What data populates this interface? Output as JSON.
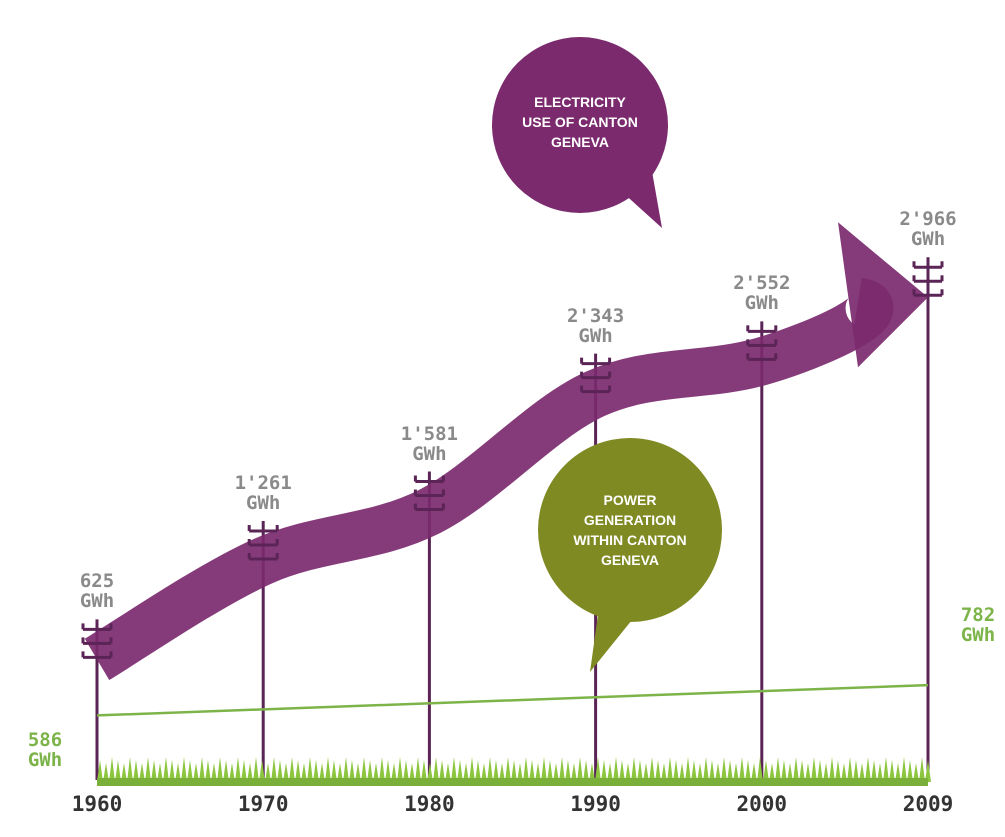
{
  "chart_data": {
    "type": "arrow-line",
    "categories": [
      "1960",
      "1970",
      "1980",
      "1990",
      "2000",
      "2009"
    ],
    "ylim": [
      -90,
      4500
    ],
    "series": [
      {
        "name": "ELECTRICITY USE OF CANTON GENEVA",
        "color": "#7b2a6e",
        "values": [
          625,
          1261,
          1581,
          2343,
          2552,
          2966
        ],
        "value_labels": [
          "625\nGWh",
          "1'261\nGWh",
          "1'581\nGWh",
          "2'343\nGWh",
          "2'552\nGWh",
          "2'966\nGWh"
        ]
      },
      {
        "name": "POWER GENERATION WITHIN CANTON GENEVA",
        "color": "#7db44a",
        "x": [
          "1960",
          "2009"
        ],
        "values": [
          586,
          782
        ],
        "value_labels": [
          "586\nGWh",
          "782\nGWh"
        ]
      }
    ]
  }
}
